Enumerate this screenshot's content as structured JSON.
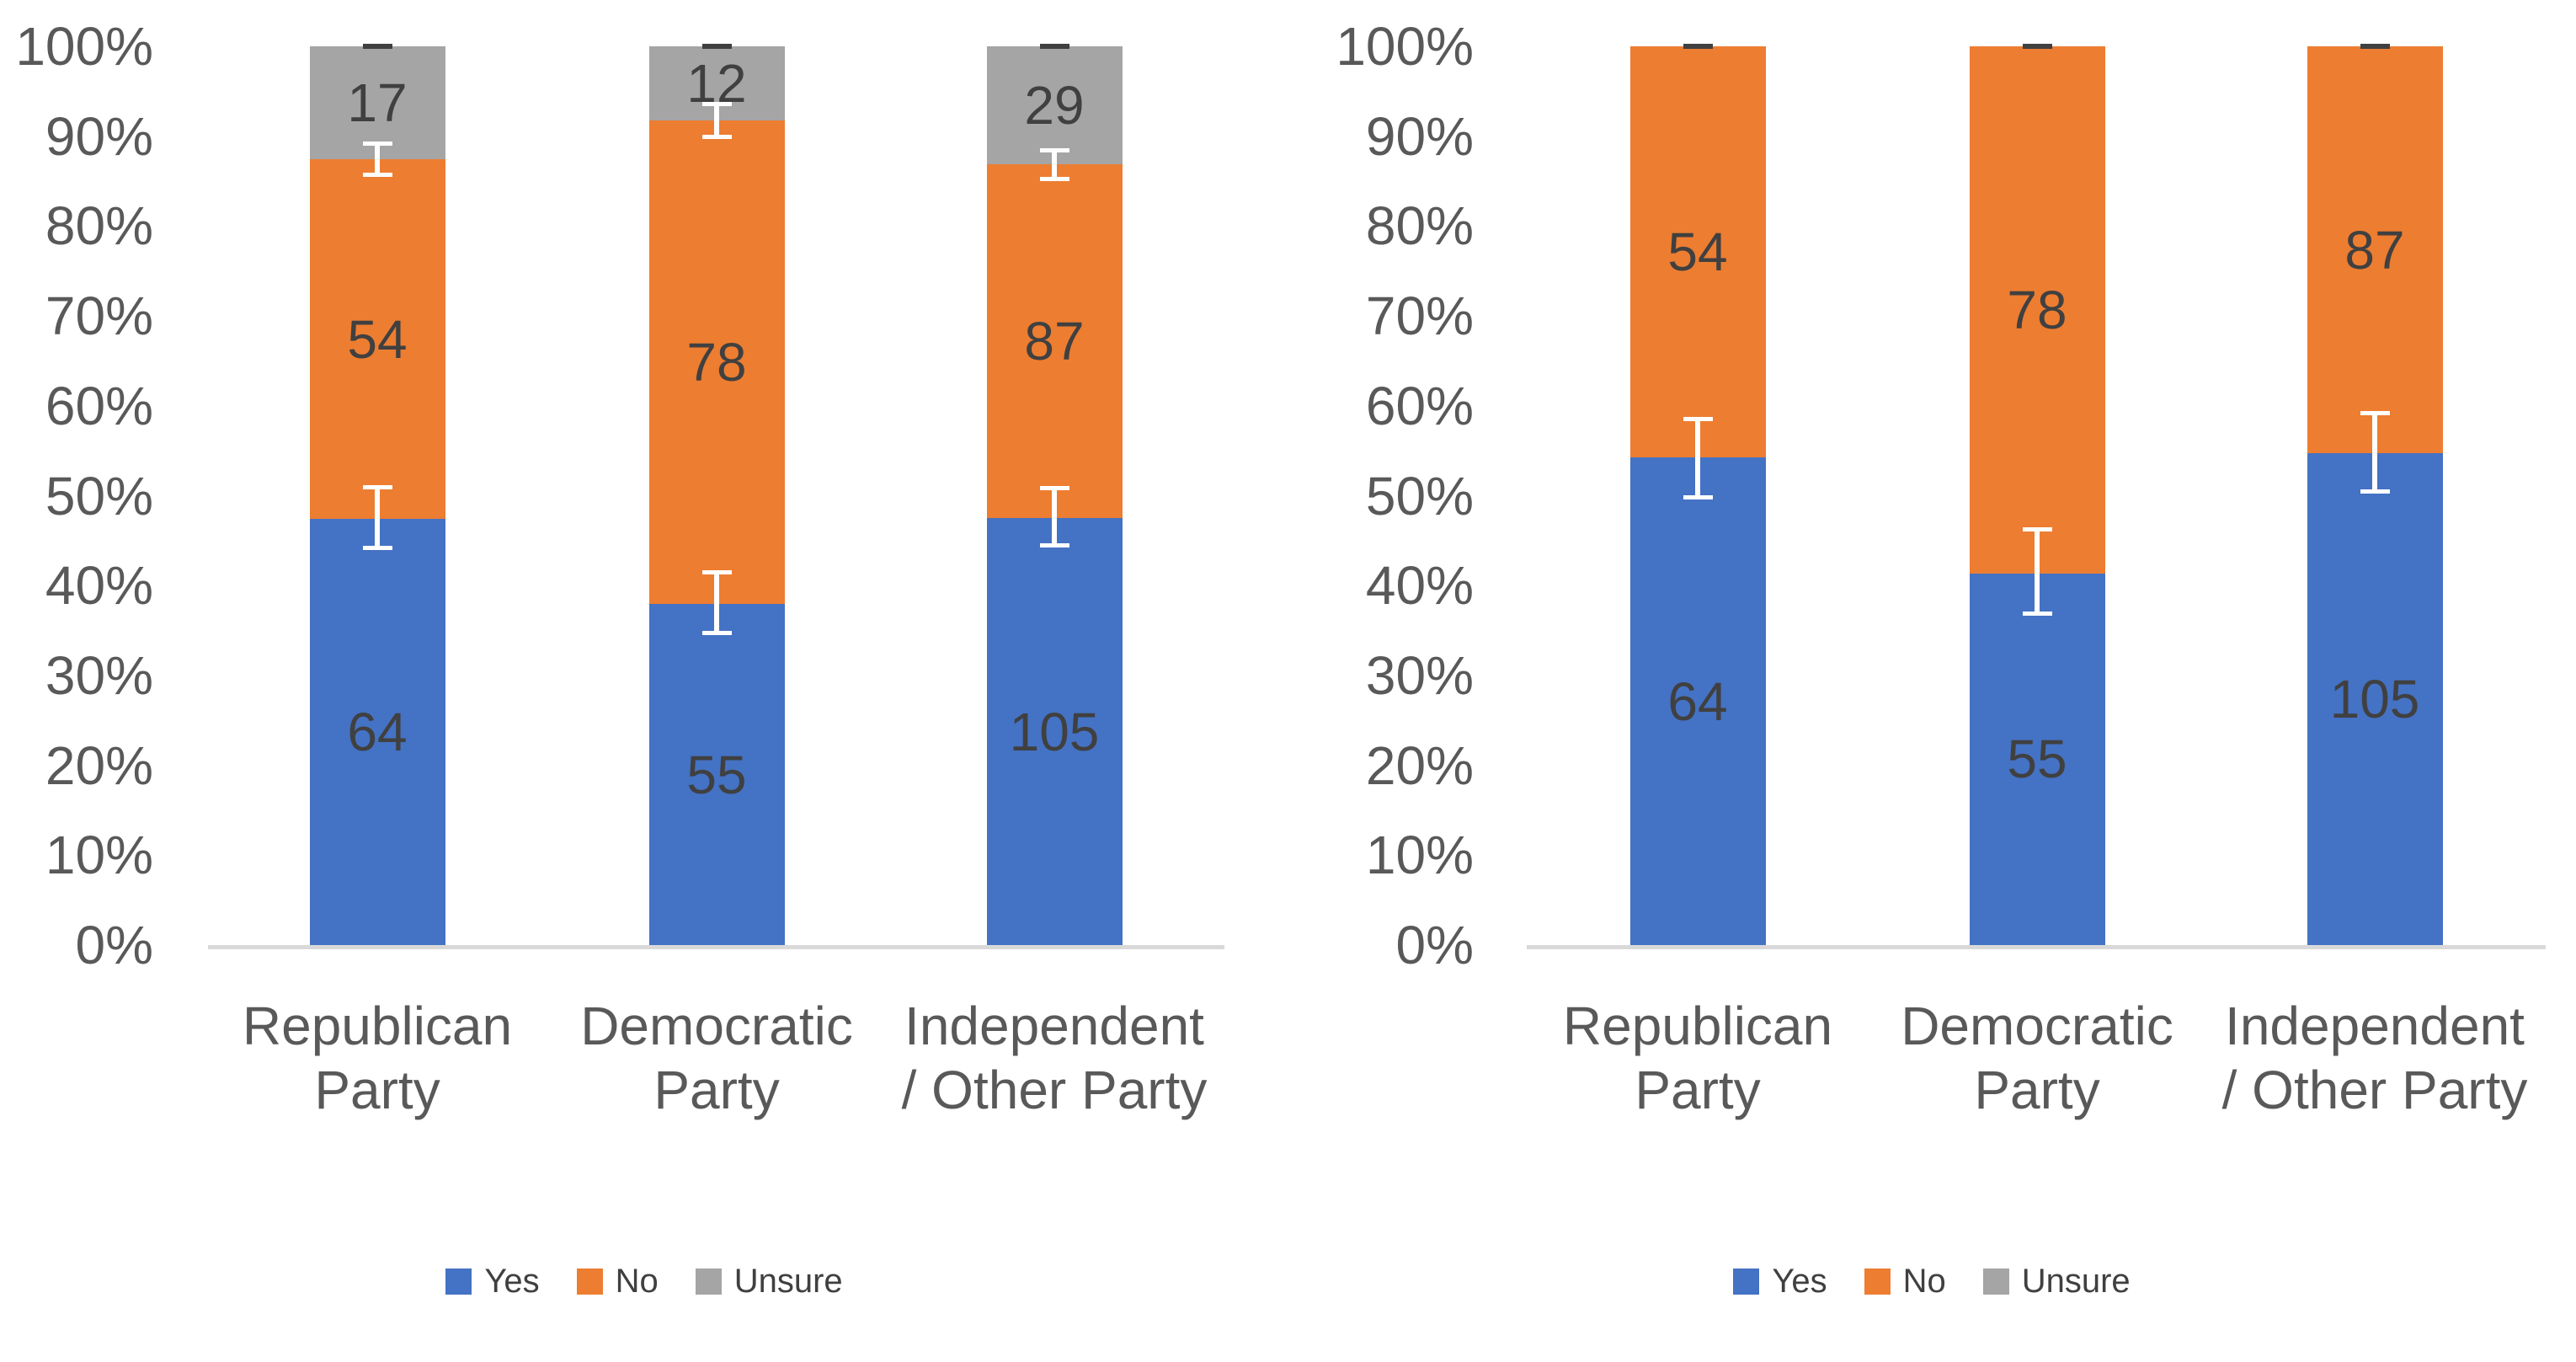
{
  "colors": {
    "yes": "#4472C4",
    "no": "#ED7D31",
    "unsure": "#A5A5A5",
    "error_whisker": "#FFFFFF",
    "error_top_cap": "#404040",
    "axis_line": "#D9D9D9",
    "axis_text": "#595959",
    "data_label_text": "#404040",
    "background": "#FFFFFF"
  },
  "chart_data": [
    {
      "type": "bar",
      "subtype": "100pct-stacked-column-with-error-bars",
      "title": "",
      "xlabel": "",
      "ylabel": "",
      "categories": [
        [
          "Republican",
          "Party"
        ],
        [
          "Democratic",
          "Party"
        ],
        [
          "Independent",
          "/ Other Party"
        ]
      ],
      "series": [
        {
          "name": "Yes",
          "color": "#4472C4",
          "values": [
            64,
            55,
            105
          ]
        },
        {
          "name": "No",
          "color": "#ED7D31",
          "values": [
            54,
            78,
            87
          ]
        },
        {
          "name": "Unsure",
          "color": "#A5A5A5",
          "values": [
            17,
            12,
            29
          ]
        }
      ],
      "y_axis": {
        "min": 0,
        "max": 100,
        "tick_step": 10,
        "grid": false,
        "tick_labels": [
          "0%",
          "10%",
          "20%",
          "30%",
          "40%",
          "50%",
          "60%",
          "70%",
          "80%",
          "90%",
          "100%"
        ]
      },
      "error_bars": {
        "whiskers": [
          {
            "after_series": "Yes",
            "ranges_pct": [
              [
                44.2,
                51.0
              ],
              [
                34.8,
                41.5
              ],
              [
                44.5,
                50.9
              ]
            ]
          },
          {
            "after_series": "No",
            "ranges_pct": [
              [
                85.8,
                89.2
              ],
              [
                90.0,
                93.6
              ],
              [
                85.3,
                88.5
              ]
            ]
          }
        ],
        "top_caps_pct": [
          100,
          100,
          100
        ]
      },
      "legend": {
        "position": "bottom",
        "items": [
          {
            "label": "Yes",
            "color": "#4472C4"
          },
          {
            "label": "No",
            "color": "#ED7D31"
          },
          {
            "label": "Unsure",
            "color": "#A5A5A5"
          }
        ]
      }
    },
    {
      "type": "bar",
      "subtype": "100pct-stacked-column-with-error-bars",
      "title": "",
      "xlabel": "",
      "ylabel": "",
      "categories": [
        [
          "Republican",
          "Party"
        ],
        [
          "Democratic",
          "Party"
        ],
        [
          "Independent",
          "/ Other Party"
        ]
      ],
      "series": [
        {
          "name": "Yes",
          "color": "#4472C4",
          "values": [
            64,
            55,
            105
          ]
        },
        {
          "name": "No",
          "color": "#ED7D31",
          "values": [
            54,
            78,
            87
          ]
        },
        {
          "name": "Unsure",
          "color": "#A5A5A5",
          "values": [
            0,
            0,
            0
          ]
        }
      ],
      "y_axis": {
        "min": 0,
        "max": 100,
        "tick_step": 10,
        "grid": false,
        "tick_labels": [
          "0%",
          "10%",
          "20%",
          "30%",
          "40%",
          "50%",
          "60%",
          "70%",
          "80%",
          "90%",
          "100%"
        ]
      },
      "error_bars": {
        "whiskers": [
          {
            "after_series": "Yes",
            "ranges_pct": [
              [
                49.9,
                58.6
              ],
              [
                36.9,
                46.3
              ],
              [
                50.5,
                59.2
              ]
            ]
          }
        ],
        "top_caps_pct": [
          100,
          100,
          100
        ]
      },
      "legend": {
        "position": "bottom",
        "items": [
          {
            "label": "Yes",
            "color": "#4472C4"
          },
          {
            "label": "No",
            "color": "#ED7D31"
          },
          {
            "label": "Unsure",
            "color": "#A5A5A5"
          }
        ]
      }
    }
  ]
}
